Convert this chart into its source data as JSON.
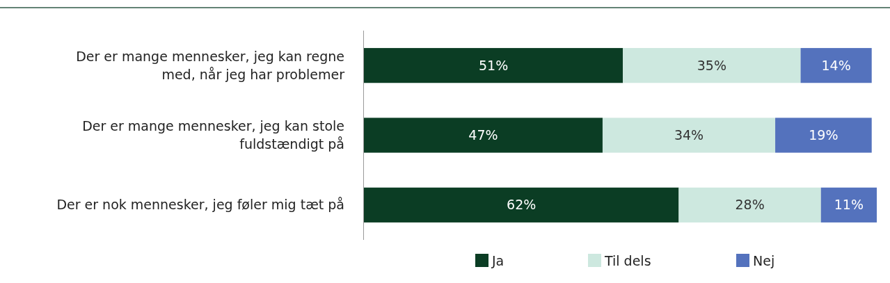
{
  "chart_data": {
    "type": "bar",
    "orientation": "horizontal",
    "stacked": true,
    "legend": "bottom",
    "categories": [
      "Der er mange mennesker, jeg kan regne med, når jeg har problemer",
      "Der er mange mennesker, jeg kan stole fuldstændigt på",
      "Der er nok mennesker, jeg føler mig tæt på"
    ],
    "series": [
      {
        "name": "Ja",
        "color": "#0b3d24",
        "values": [
          51,
          47,
          62
        ],
        "value_labels": [
          "51%",
          "47%",
          "62%"
        ]
      },
      {
        "name": "Til dels",
        "color": "#cde8df",
        "values": [
          35,
          34,
          28
        ],
        "value_labels": [
          "35%",
          "34%",
          "28%"
        ]
      },
      {
        "name": "Nej",
        "color": "#5472bd",
        "values": [
          14,
          19,
          11
        ],
        "value_labels": [
          "14%",
          "19%",
          "11%"
        ]
      }
    ]
  }
}
